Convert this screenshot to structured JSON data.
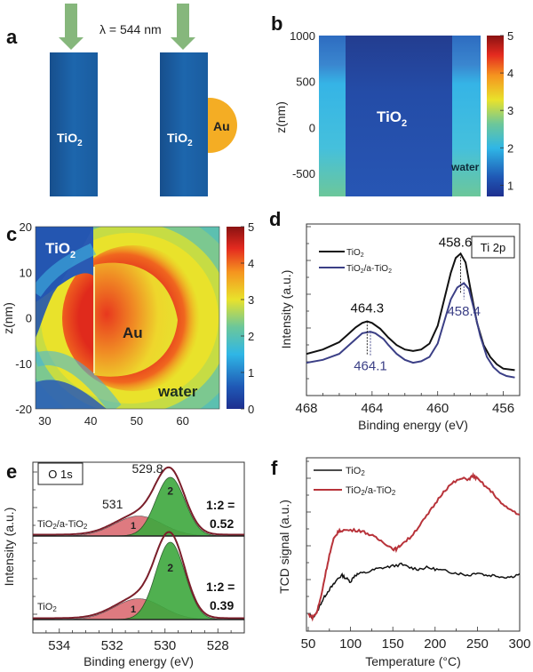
{
  "chart_data": [
    {
      "panel": "a",
      "type": "diagram",
      "annotation": "λ = 544 nm",
      "structures": [
        {
          "label": "TiO",
          "sub": "2"
        },
        {
          "label": "TiO",
          "sub": "2",
          "particle": "Au"
        }
      ],
      "colors": {
        "bar": "#1a5fa3",
        "arrow": "#86b77c",
        "au": "#f4ad24"
      }
    },
    {
      "panel": "b",
      "type": "heatmap",
      "ylabel": "z(nm)",
      "yticks": [
        1000,
        500,
        0,
        -500
      ],
      "ylim": [
        -750,
        1000
      ],
      "colorbar": {
        "ticks": [
          1,
          2,
          3,
          4,
          5
        ],
        "range": [
          0.7,
          5
        ]
      },
      "labels": {
        "center": "TiO",
        "center_sub": "2",
        "side": "water"
      },
      "regions": [
        {
          "name": "water-left",
          "value_top": 1.2,
          "value_bottom": 2.2
        },
        {
          "name": "TiO2",
          "value_top": 0.8,
          "value_bottom": 1.0
        },
        {
          "name": "water-right",
          "value_top": 1.2,
          "value_bottom": 2.2
        }
      ]
    },
    {
      "panel": "c",
      "type": "heatmap",
      "ylabel": "z(nm)",
      "xticks": [
        30,
        40,
        50,
        60
      ],
      "yticks": [
        20,
        10,
        0,
        -10,
        -20
      ],
      "xlim": [
        28,
        68
      ],
      "ylim": [
        -20,
        20
      ],
      "colorbar": {
        "ticks": [
          0,
          1,
          2,
          3,
          4,
          5
        ],
        "range": [
          0,
          5
        ]
      },
      "labels": {
        "tio2": "TiO",
        "tio2_sub": "2",
        "au": "Au",
        "water": "water"
      }
    },
    {
      "panel": "d",
      "type": "line",
      "title": "Ti 2p",
      "xlabel": "Binding energy (eV)",
      "ylabel": "Intensity (a.u.)",
      "xlim": [
        468,
        455
      ],
      "xticks": [
        468,
        464,
        460,
        456
      ],
      "ylim": [
        0,
        1
      ],
      "legend": {
        "placement": "top-left"
      },
      "series": [
        {
          "name": "TiO2",
          "name_main": "TiO",
          "name_sub": "2",
          "color": "#111111",
          "x": [
            468,
            467,
            466,
            465.5,
            465,
            464.6,
            464.3,
            464,
            463.5,
            463,
            462.5,
            462,
            461.5,
            461,
            460.5,
            460,
            459.6,
            459.2,
            458.9,
            458.6,
            458.3,
            458,
            457.6,
            457.2,
            456.8,
            456.4,
            456,
            455.3
          ],
          "y": [
            0.21,
            0.24,
            0.29,
            0.34,
            0.39,
            0.42,
            0.43,
            0.42,
            0.38,
            0.32,
            0.27,
            0.24,
            0.23,
            0.24,
            0.28,
            0.4,
            0.58,
            0.76,
            0.86,
            0.89,
            0.83,
            0.65,
            0.42,
            0.27,
            0.19,
            0.14,
            0.11,
            0.1
          ]
        },
        {
          "name": "TiO2/a-TiO2",
          "name_main": "TiO",
          "name_sub": "2",
          "name_tail": "/a-TiO",
          "name_tail_sub": "2",
          "color": "#3b3f86",
          "x": [
            468,
            467,
            466,
            465.5,
            465,
            464.6,
            464.1,
            463.8,
            463.3,
            463,
            462.5,
            462,
            461.5,
            461,
            460.5,
            460,
            459.6,
            459.2,
            458.8,
            458.4,
            458.1,
            457.8,
            457.4,
            457,
            456.6,
            456.2,
            455.8,
            455.3
          ],
          "y": [
            0.15,
            0.17,
            0.21,
            0.26,
            0.31,
            0.35,
            0.36,
            0.35,
            0.31,
            0.27,
            0.21,
            0.17,
            0.15,
            0.16,
            0.19,
            0.28,
            0.43,
            0.58,
            0.66,
            0.69,
            0.65,
            0.52,
            0.33,
            0.19,
            0.12,
            0.08,
            0.06,
            0.05
          ]
        }
      ],
      "annotations": [
        {
          "text": "464.3",
          "x": 464.3,
          "color": "#111111"
        },
        {
          "text": "464.1",
          "x": 464.1,
          "color": "#3b3f86"
        },
        {
          "text": "458.6",
          "x": 458.6,
          "color": "#111111"
        },
        {
          "text": "458.4",
          "x": 458.4,
          "color": "#3b3f86"
        }
      ]
    },
    {
      "panel": "e",
      "type": "area",
      "title": "O 1s",
      "xlabel": "Binding energy (eV)",
      "ylabel": "Intensity (a.u.)",
      "xlim": [
        535,
        527
      ],
      "xticks": [
        534,
        532,
        530,
        528
      ],
      "peak_label": "529.8",
      "shoulder_label": "531",
      "series": [
        {
          "name": "TiO2/a-TiO2",
          "name_main": "TiO",
          "name_sub": "2",
          "name_tail": "/a-TiO",
          "name_tail_sub": "2",
          "ratio_label": "1:2 =",
          "ratio": "0.52",
          "peak1": {
            "center": 531.0,
            "amp": 0.3,
            "sigma": 0.9,
            "label": "1"
          },
          "peak2": {
            "center": 529.8,
            "amp": 0.88,
            "sigma": 0.55,
            "label": "2"
          }
        },
        {
          "name": "TiO2",
          "name_main": "TiO",
          "name_sub": "2",
          "ratio_label": "1:2 =",
          "ratio": "0.39",
          "peak1": {
            "center": 531.0,
            "amp": 0.27,
            "sigma": 0.9,
            "label": "1"
          },
          "peak2": {
            "center": 529.8,
            "amp": 1.0,
            "sigma": 0.55,
            "label": "2"
          }
        }
      ],
      "colors": {
        "peak1": "#d9636b",
        "peak2": "#3ea83e",
        "envelope": "#7a1e2a"
      }
    },
    {
      "panel": "f",
      "type": "line",
      "xlabel": "Temperature (°C)",
      "ylabel": "TCD signal (a.u.)",
      "xlim": [
        50,
        300
      ],
      "xticks": [
        50,
        100,
        150,
        200,
        250,
        300
      ],
      "legend": {
        "placement": "top-left"
      },
      "series": [
        {
          "name": "TiO2",
          "name_main": "TiO",
          "name_sub": "2",
          "color": "#111111",
          "x": [
            50,
            55,
            60,
            65,
            70,
            75,
            80,
            85,
            90,
            95,
            100,
            105,
            110,
            120,
            130,
            140,
            150,
            160,
            170,
            180,
            190,
            200,
            210,
            220,
            230,
            240,
            250,
            260,
            270,
            280,
            290,
            300
          ],
          "y": [
            0.08,
            0.06,
            0.09,
            0.15,
            0.2,
            0.24,
            0.27,
            0.31,
            0.33,
            0.31,
            0.29,
            0.33,
            0.34,
            0.35,
            0.37,
            0.38,
            0.39,
            0.4,
            0.38,
            0.37,
            0.38,
            0.37,
            0.36,
            0.35,
            0.34,
            0.33,
            0.35,
            0.33,
            0.33,
            0.32,
            0.32,
            0.34
          ]
        },
        {
          "name": "TiO2/a-TiO2",
          "name_main": "TiO",
          "name_sub": "2",
          "name_tail": "/a-TiO",
          "name_tail_sub": "2",
          "color": "#b8333a",
          "x": [
            50,
            55,
            60,
            65,
            70,
            75,
            80,
            85,
            90,
            100,
            110,
            120,
            130,
            140,
            150,
            155,
            160,
            170,
            180,
            190,
            200,
            210,
            220,
            230,
            240,
            245,
            250,
            260,
            270,
            280,
            290,
            300
          ],
          "y": [
            0.08,
            0.06,
            0.09,
            0.19,
            0.33,
            0.46,
            0.56,
            0.61,
            0.62,
            0.62,
            0.62,
            0.6,
            0.57,
            0.54,
            0.5,
            0.5,
            0.53,
            0.57,
            0.64,
            0.71,
            0.79,
            0.87,
            0.92,
            0.95,
            0.95,
            0.97,
            0.95,
            0.9,
            0.85,
            0.78,
            0.75,
            0.72
          ]
        }
      ]
    }
  ],
  "panel_labels": [
    "a",
    "b",
    "c",
    "d",
    "e",
    "f"
  ]
}
